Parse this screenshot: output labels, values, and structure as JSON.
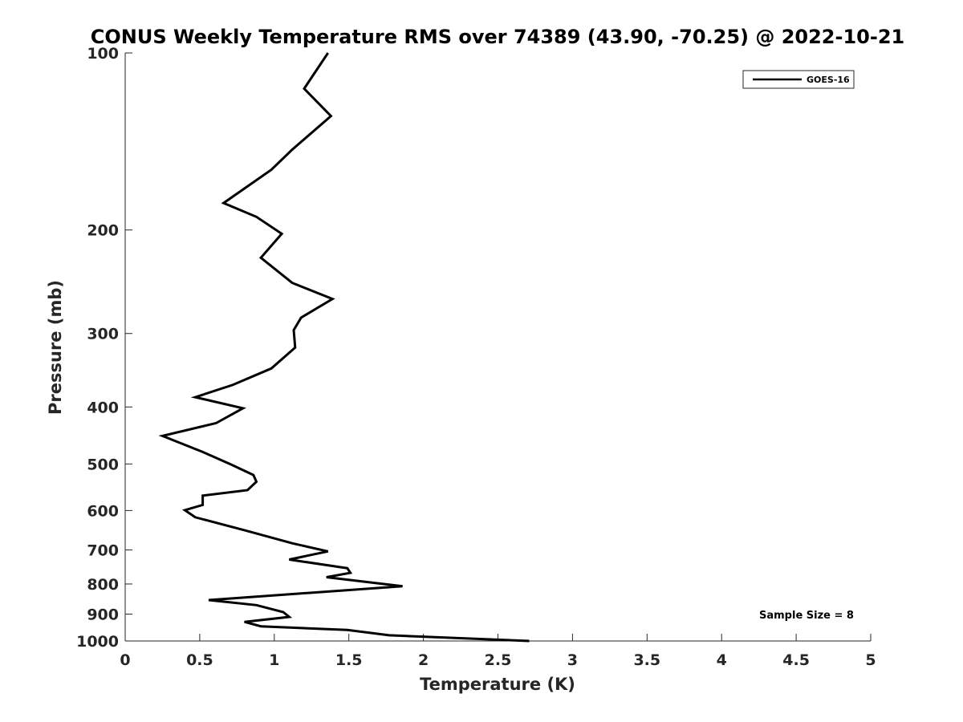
{
  "chart_data": {
    "type": "line",
    "title": "CONUS Weekly Temperature RMS over 74389 (43.90, -70.25) @ 2022-10-21",
    "xlabel": "Temperature (K)",
    "ylabel": "Pressure (mb)",
    "xlim": [
      0,
      5
    ],
    "ylim": [
      100,
      1000
    ],
    "yscale": "log",
    "y_reversed": true,
    "xticks": [
      "0",
      "0.5",
      "1",
      "1.5",
      "2",
      "2.5",
      "3",
      "3.5",
      "4",
      "4.5",
      "5"
    ],
    "yticks": [
      "100",
      "200",
      "300",
      "400",
      "500",
      "600",
      "700",
      "800",
      "900",
      "1000"
    ],
    "legend_position": "top-right",
    "series": [
      {
        "name": "GOES-16",
        "color": "#000000",
        "x": [
          1.36,
          1.2,
          1.38,
          1.12,
          0.98,
          0.66,
          0.88,
          1.05,
          0.91,
          1.12,
          1.39,
          1.18,
          1.13,
          1.14,
          0.98,
          0.72,
          0.47,
          0.79,
          0.61,
          0.25,
          0.52,
          0.71,
          0.86,
          0.88,
          0.82,
          0.52,
          0.52,
          0.4,
          0.47,
          0.81,
          1.12,
          1.36,
          1.1,
          1.49,
          1.51,
          1.35,
          1.86,
          0.56,
          0.88,
          1.06,
          1.1,
          0.8,
          0.91,
          1.49,
          1.77,
          2.71
        ],
        "y": [
          100,
          115,
          128,
          146,
          158,
          180,
          190,
          203,
          223,
          246,
          262,
          282,
          296,
          317,
          344,
          367,
          385,
          402,
          426,
          448,
          477,
          501,
          522,
          536,
          554,
          566,
          587,
          599,
          616,
          649,
          682,
          704,
          727,
          752,
          766,
          779,
          807,
          852,
          869,
          893,
          910,
          928,
          944,
          958,
          978,
          1000
        ]
      }
    ],
    "annotations": [
      "Sample Size = 8"
    ]
  }
}
